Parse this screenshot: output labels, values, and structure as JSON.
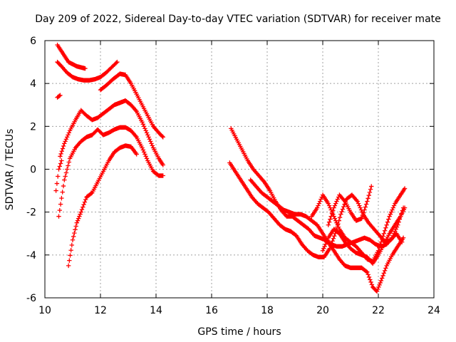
{
  "chart_data": {
    "type": "scatter",
    "title": "Day 209 of 2022, Sidereal Day-to-day VTEC variation (SDTVAR) for receiver mate",
    "xlabel": "GPS time / hours",
    "ylabel": "SDTVAR / TECUs",
    "xlim": [
      10,
      24
    ],
    "ylim": [
      -6,
      6
    ],
    "xticks": [
      10,
      12,
      14,
      16,
      18,
      20,
      22,
      24
    ],
    "yticks": [
      -6,
      -4,
      -2,
      0,
      2,
      4,
      6
    ],
    "xtick_labels": [
      "10",
      "12",
      "14",
      "16",
      "18",
      "20",
      "22",
      "24"
    ],
    "ytick_labels": [
      "-6",
      "-4",
      "-2",
      "0",
      "2",
      "4",
      "6"
    ],
    "grid": true,
    "marker": "plus",
    "color": "#ff0000",
    "series": [
      {
        "name": "trace-1",
        "points": [
          [
            10.45,
            5.8
          ],
          [
            10.55,
            5.6
          ],
          [
            10.7,
            5.3
          ],
          [
            10.85,
            5.0
          ],
          [
            11.0,
            4.9
          ],
          [
            11.15,
            4.8
          ],
          [
            11.3,
            4.75
          ],
          [
            11.45,
            4.7
          ]
        ]
      },
      {
        "name": "trace-2",
        "points": [
          [
            10.45,
            5.0
          ],
          [
            10.6,
            4.8
          ],
          [
            10.8,
            4.5
          ],
          [
            11.0,
            4.3
          ],
          [
            11.2,
            4.2
          ],
          [
            11.4,
            4.15
          ],
          [
            11.6,
            4.15
          ],
          [
            11.8,
            4.2
          ],
          [
            12.0,
            4.3
          ],
          [
            12.2,
            4.5
          ],
          [
            12.4,
            4.75
          ],
          [
            12.6,
            5.0
          ]
        ]
      },
      {
        "name": "trace-3",
        "points": [
          [
            12.0,
            3.7
          ],
          [
            12.2,
            3.9
          ],
          [
            12.45,
            4.2
          ],
          [
            12.7,
            4.45
          ],
          [
            12.9,
            4.4
          ],
          [
            13.1,
            4.0
          ],
          [
            13.3,
            3.5
          ],
          [
            13.5,
            3.0
          ],
          [
            13.7,
            2.5
          ],
          [
            13.9,
            2.0
          ],
          [
            14.1,
            1.7
          ],
          [
            14.25,
            1.5
          ]
        ]
      },
      {
        "name": "trace-4",
        "points": [
          [
            10.45,
            3.35
          ],
          [
            10.55,
            3.45
          ]
        ]
      },
      {
        "name": "trace-5",
        "points": [
          [
            10.55,
            0.6
          ],
          [
            10.7,
            1.2
          ],
          [
            10.9,
            1.8
          ],
          [
            11.1,
            2.3
          ],
          [
            11.3,
            2.75
          ],
          [
            11.5,
            2.5
          ],
          [
            11.7,
            2.3
          ],
          [
            11.9,
            2.4
          ],
          [
            12.1,
            2.6
          ],
          [
            12.3,
            2.8
          ],
          [
            12.5,
            3.0
          ],
          [
            12.7,
            3.1
          ],
          [
            12.9,
            3.2
          ],
          [
            13.1,
            3.0
          ],
          [
            13.3,
            2.7
          ],
          [
            13.5,
            2.2
          ],
          [
            13.7,
            1.6
          ],
          [
            13.9,
            1.0
          ],
          [
            14.1,
            0.5
          ],
          [
            14.25,
            0.2
          ]
        ]
      },
      {
        "name": "trace-6",
        "points": [
          [
            10.4,
            -1.0
          ],
          [
            10.5,
            0.0
          ],
          [
            10.6,
            0.4
          ]
        ]
      },
      {
        "name": "trace-7",
        "points": [
          [
            10.5,
            -2.2
          ],
          [
            10.7,
            -0.5
          ],
          [
            10.9,
            0.5
          ],
          [
            11.1,
            1.0
          ],
          [
            11.3,
            1.3
          ],
          [
            11.5,
            1.5
          ],
          [
            11.7,
            1.6
          ],
          [
            11.9,
            1.85
          ],
          [
            12.1,
            1.6
          ],
          [
            12.3,
            1.7
          ],
          [
            12.5,
            1.85
          ],
          [
            12.7,
            1.95
          ],
          [
            12.9,
            1.95
          ],
          [
            13.1,
            1.8
          ],
          [
            13.3,
            1.5
          ],
          [
            13.5,
            1.0
          ],
          [
            13.7,
            0.4
          ],
          [
            13.9,
            -0.1
          ],
          [
            14.1,
            -0.3
          ],
          [
            14.25,
            -0.3
          ]
        ]
      },
      {
        "name": "trace-8",
        "points": [
          [
            10.85,
            -4.5
          ],
          [
            11.0,
            -3.3
          ],
          [
            11.15,
            -2.5
          ],
          [
            11.3,
            -2.0
          ],
          [
            11.5,
            -1.3
          ],
          [
            11.7,
            -1.1
          ],
          [
            11.9,
            -0.6
          ],
          [
            12.1,
            -0.1
          ],
          [
            12.3,
            0.4
          ],
          [
            12.5,
            0.8
          ],
          [
            12.7,
            1.0
          ],
          [
            12.9,
            1.1
          ],
          [
            13.1,
            1.05
          ],
          [
            13.3,
            0.7
          ]
        ]
      },
      {
        "name": "trace-9",
        "points": [
          [
            16.7,
            1.9
          ],
          [
            16.9,
            1.4
          ],
          [
            17.1,
            0.9
          ],
          [
            17.3,
            0.4
          ],
          [
            17.5,
            0.0
          ],
          [
            17.7,
            -0.3
          ],
          [
            17.9,
            -0.6
          ],
          [
            18.1,
            -1.0
          ],
          [
            18.3,
            -1.5
          ],
          [
            18.5,
            -1.9
          ],
          [
            18.7,
            -2.2
          ],
          [
            18.9,
            -2.2
          ],
          [
            19.1,
            -2.4
          ],
          [
            19.3,
            -2.6
          ],
          [
            19.5,
            -2.8
          ],
          [
            19.7,
            -3.1
          ],
          [
            19.9,
            -3.2
          ],
          [
            20.1,
            -3.3
          ],
          [
            20.3,
            -3.5
          ],
          [
            20.5,
            -3.6
          ],
          [
            20.7,
            -3.6
          ],
          [
            20.9,
            -3.5
          ],
          [
            21.1,
            -3.4
          ],
          [
            21.3,
            -3.3
          ],
          [
            21.5,
            -3.2
          ],
          [
            21.7,
            -3.3
          ],
          [
            21.9,
            -3.5
          ],
          [
            22.1,
            -3.6
          ],
          [
            22.3,
            -3.5
          ],
          [
            22.5,
            -3.2
          ],
          [
            22.7,
            -2.6
          ],
          [
            22.9,
            -1.8
          ]
        ]
      },
      {
        "name": "trace-10",
        "points": [
          [
            16.65,
            0.3
          ],
          [
            16.85,
            -0.1
          ],
          [
            17.05,
            -0.5
          ],
          [
            17.25,
            -0.9
          ],
          [
            17.45,
            -1.3
          ],
          [
            17.65,
            -1.6
          ],
          [
            17.85,
            -1.8
          ],
          [
            18.05,
            -2.0
          ],
          [
            18.25,
            -2.3
          ],
          [
            18.45,
            -2.6
          ],
          [
            18.65,
            -2.8
          ],
          [
            18.85,
            -2.9
          ],
          [
            19.05,
            -3.1
          ],
          [
            19.25,
            -3.5
          ],
          [
            19.45,
            -3.8
          ],
          [
            19.65,
            -4.0
          ],
          [
            19.85,
            -4.1
          ],
          [
            20.05,
            -4.1
          ],
          [
            20.25,
            -3.7
          ],
          [
            20.45,
            -3.0
          ],
          [
            20.65,
            -2.1
          ],
          [
            20.85,
            -1.4
          ],
          [
            21.05,
            -1.2
          ],
          [
            21.25,
            -1.5
          ],
          [
            21.45,
            -2.1
          ],
          [
            21.65,
            -2.5
          ],
          [
            21.85,
            -2.8
          ],
          [
            22.05,
            -3.1
          ],
          [
            22.25,
            -3.4
          ],
          [
            22.45,
            -3.3
          ],
          [
            22.65,
            -3.0
          ],
          [
            22.85,
            -3.4
          ]
        ]
      },
      {
        "name": "trace-11",
        "points": [
          [
            17.4,
            -0.5
          ],
          [
            17.6,
            -0.8
          ],
          [
            17.8,
            -1.1
          ],
          [
            18.0,
            -1.3
          ],
          [
            18.2,
            -1.5
          ],
          [
            18.4,
            -1.7
          ],
          [
            18.6,
            -1.9
          ],
          [
            18.8,
            -2.0
          ],
          [
            19.0,
            -2.1
          ],
          [
            19.2,
            -2.1
          ],
          [
            19.4,
            -2.2
          ],
          [
            19.6,
            -2.4
          ],
          [
            19.8,
            -2.6
          ],
          [
            20.0,
            -3.0
          ],
          [
            20.2,
            -3.4
          ],
          [
            20.4,
            -3.8
          ],
          [
            20.6,
            -4.2
          ],
          [
            20.8,
            -4.5
          ],
          [
            21.0,
            -4.6
          ],
          [
            21.2,
            -4.6
          ],
          [
            21.4,
            -4.6
          ],
          [
            21.6,
            -4.8
          ],
          [
            21.8,
            -5.5
          ],
          [
            21.95,
            -5.7
          ],
          [
            22.1,
            -5.2
          ],
          [
            22.3,
            -4.5
          ],
          [
            22.5,
            -4.0
          ],
          [
            22.7,
            -3.6
          ],
          [
            22.9,
            -3.2
          ]
        ]
      },
      {
        "name": "trace-12",
        "points": [
          [
            19.6,
            -2.2
          ],
          [
            19.8,
            -1.8
          ],
          [
            20.0,
            -1.2
          ],
          [
            20.2,
            -1.6
          ],
          [
            20.4,
            -2.2
          ],
          [
            20.6,
            -2.8
          ],
          [
            20.8,
            -3.2
          ],
          [
            21.0,
            -3.4
          ],
          [
            21.2,
            -3.6
          ],
          [
            21.4,
            -3.9
          ],
          [
            21.6,
            -4.2
          ],
          [
            21.8,
            -4.3
          ],
          [
            22.0,
            -3.8
          ],
          [
            22.2,
            -3.0
          ],
          [
            22.4,
            -2.2
          ],
          [
            22.6,
            -1.6
          ],
          [
            22.8,
            -1.2
          ],
          [
            22.95,
            -0.9
          ]
        ]
      },
      {
        "name": "trace-13",
        "points": [
          [
            20.2,
            -2.6
          ],
          [
            20.4,
            -1.8
          ],
          [
            20.6,
            -1.2
          ],
          [
            20.8,
            -1.5
          ],
          [
            21.0,
            -2.0
          ],
          [
            21.2,
            -2.4
          ],
          [
            21.4,
            -2.3
          ],
          [
            21.6,
            -1.5
          ],
          [
            21.75,
            -0.8
          ]
        ]
      },
      {
        "name": "trace-14",
        "points": [
          [
            20.0,
            -3.8
          ],
          [
            20.2,
            -3.2
          ],
          [
            20.4,
            -2.8
          ],
          [
            20.6,
            -3.0
          ],
          [
            20.8,
            -3.4
          ],
          [
            21.0,
            -3.7
          ],
          [
            21.2,
            -3.9
          ],
          [
            21.4,
            -4.0
          ],
          [
            21.6,
            -4.1
          ],
          [
            21.8,
            -4.4
          ],
          [
            22.0,
            -4.0
          ],
          [
            22.2,
            -3.5
          ],
          [
            22.4,
            -3.0
          ],
          [
            22.6,
            -2.6
          ],
          [
            22.8,
            -2.2
          ],
          [
            22.95,
            -1.8
          ]
        ]
      }
    ]
  }
}
